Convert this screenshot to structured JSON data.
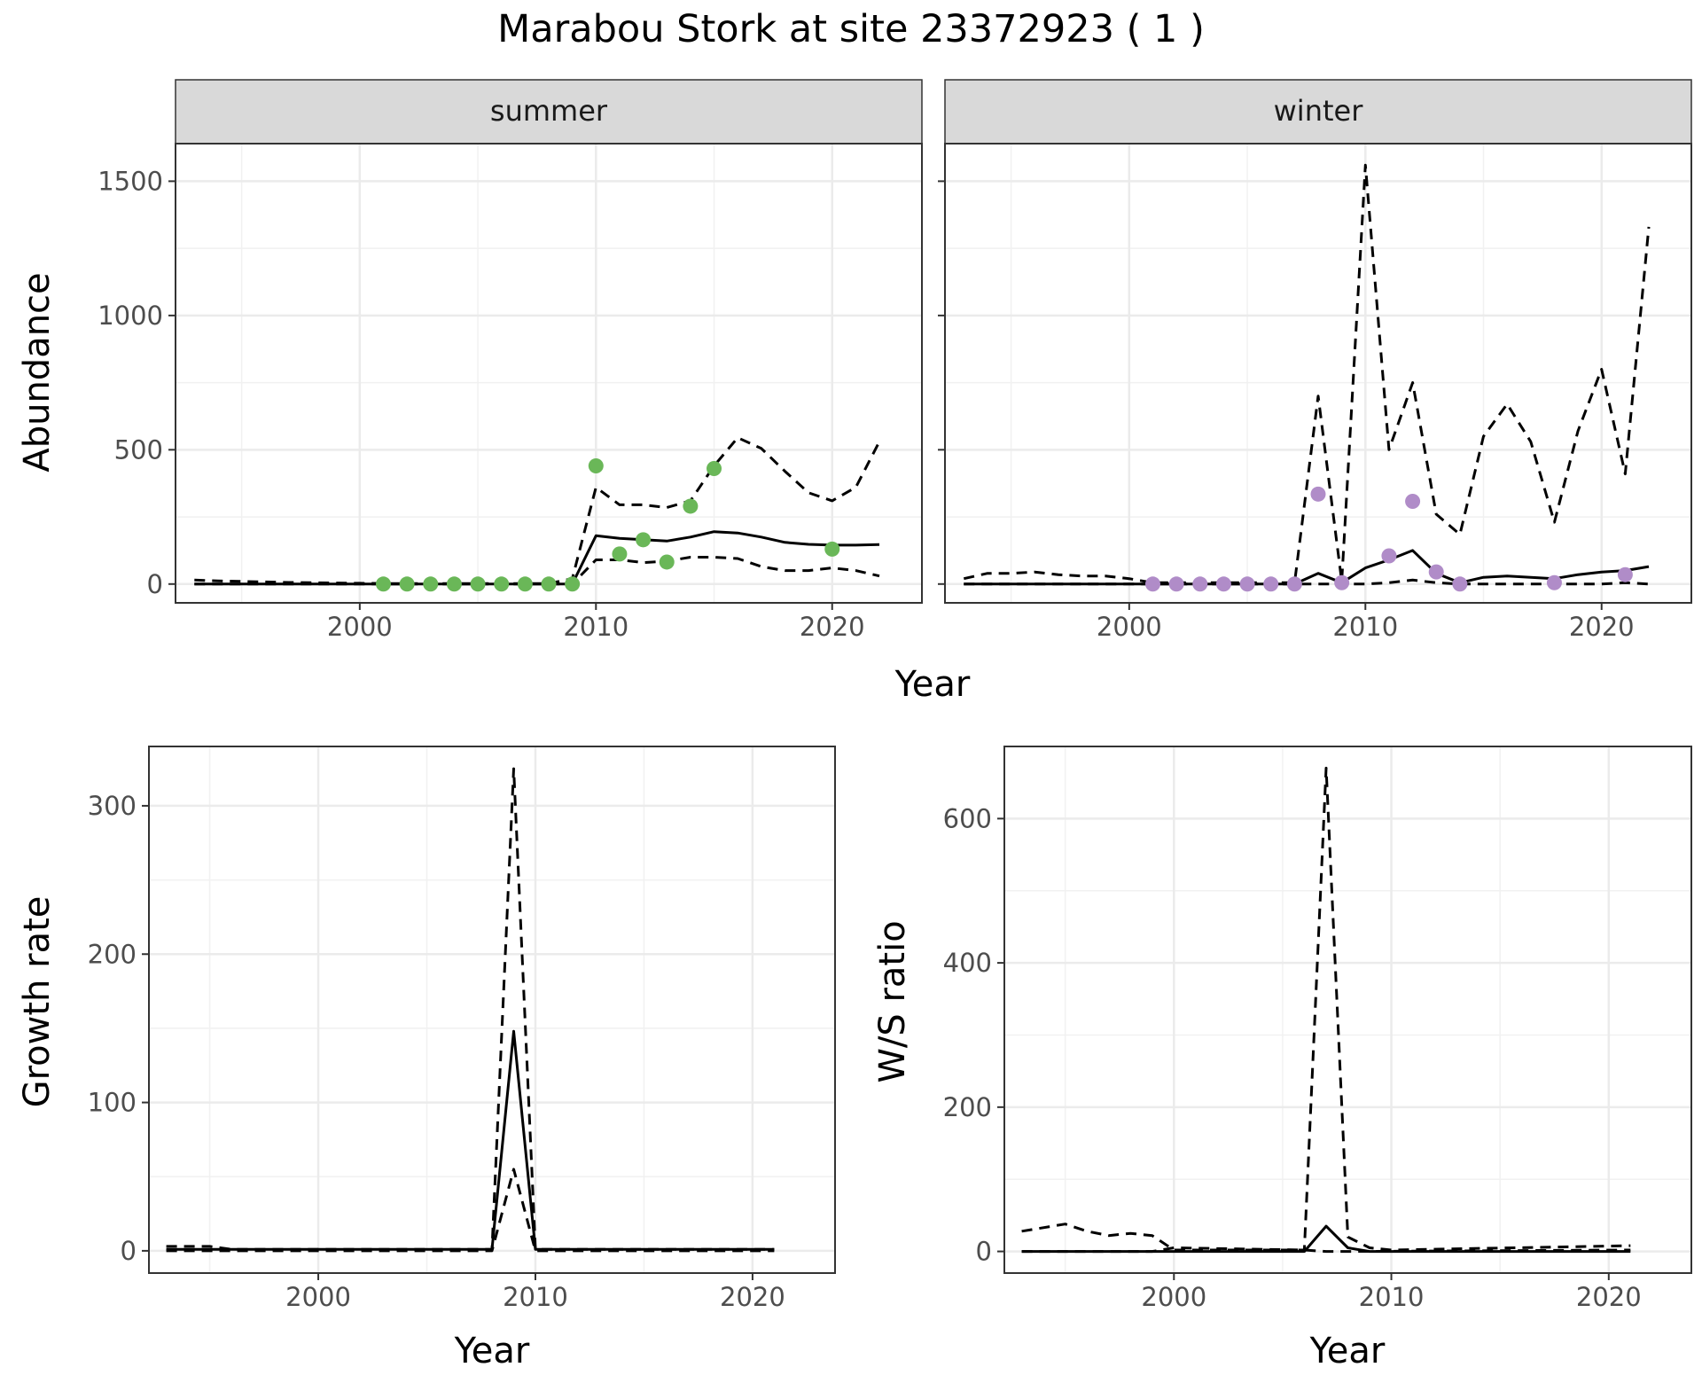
{
  "title": "Marabou Stork at site 23372923 ( 1 )",
  "chart_data": [
    {
      "panel": "summer",
      "type": "line",
      "xlabel": "",
      "ylabel": "Abundance",
      "xlim": [
        1992.2,
        2023.8
      ],
      "ylim": [
        -70,
        1640
      ],
      "xticks": [
        2000,
        2010,
        2020
      ],
      "yticks": [
        0,
        500,
        1000,
        1500
      ],
      "grid": true,
      "lines": [
        {
          "style": "solid",
          "x": [
            1993,
            2009,
            2010,
            2011,
            2012,
            2013,
            2014,
            2015,
            2016,
            2017,
            2018,
            2019,
            2020,
            2021,
            2022
          ],
          "y": [
            0,
            0,
            180,
            170,
            165,
            160,
            175,
            195,
            190,
            175,
            155,
            148,
            145,
            145,
            147
          ]
        },
        {
          "style": "dashed",
          "x": [
            1993,
            1994,
            1995,
            1996,
            1997,
            1998,
            1999,
            2000,
            2001,
            2002,
            2003,
            2004,
            2005,
            2006,
            2007,
            2008,
            2009,
            2010,
            2011,
            2012,
            2013,
            2014,
            2015,
            2016,
            2017,
            2018,
            2019,
            2020,
            2021,
            2022
          ],
          "y": [
            15,
            12,
            10,
            8,
            6,
            5,
            4,
            3,
            2,
            2,
            2,
            2,
            2,
            2,
            2,
            2,
            20,
            360,
            295,
            295,
            285,
            310,
            440,
            545,
            505,
            420,
            340,
            310,
            360,
            530
          ]
        },
        {
          "style": "dashed",
          "x": [
            1993,
            2009,
            2010,
            2011,
            2012,
            2013,
            2014,
            2015,
            2016,
            2017,
            2018,
            2019,
            2020,
            2021,
            2022
          ],
          "y": [
            0,
            0,
            90,
            90,
            80,
            85,
            100,
            100,
            95,
            65,
            50,
            50,
            60,
            50,
            30
          ]
        }
      ],
      "points": {
        "color": "#6ab758",
        "x": [
          2001,
          2002,
          2003,
          2004,
          2005,
          2006,
          2007,
          2008,
          2009,
          2010,
          2011,
          2012,
          2013,
          2014,
          2015,
          2020
        ],
        "y": [
          0,
          0,
          0,
          0,
          0,
          0,
          0,
          0,
          0,
          440,
          112,
          165,
          82,
          290,
          430,
          130
        ]
      }
    },
    {
      "panel": "winter",
      "type": "line",
      "xlabel": "",
      "ylabel": "",
      "xlim": [
        1992.2,
        2023.8
      ],
      "ylim": [
        -70,
        1640
      ],
      "xticks": [
        2000,
        2010,
        2020
      ],
      "yticks": [
        0,
        500,
        1000,
        1500
      ],
      "grid": true,
      "lines": [
        {
          "style": "solid",
          "x": [
            1993,
            2007,
            2008,
            2009,
            2010,
            2011,
            2012,
            2013,
            2014,
            2015,
            2016,
            2017,
            2018,
            2019,
            2020,
            2021,
            2022
          ],
          "y": [
            0,
            0,
            40,
            5,
            60,
            90,
            125,
            40,
            5,
            25,
            30,
            25,
            20,
            35,
            45,
            50,
            65
          ]
        },
        {
          "style": "dashed",
          "x": [
            1993,
            1994,
            1995,
            1996,
            1997,
            1998,
            1999,
            2000,
            2001,
            2002,
            2003,
            2004,
            2005,
            2006,
            2007,
            2008,
            2009,
            2010,
            2011,
            2012,
            2013,
            2014,
            2015,
            2016,
            2017,
            2018,
            2019,
            2020,
            2021,
            2022
          ],
          "y": [
            20,
            40,
            40,
            45,
            35,
            30,
            30,
            20,
            5,
            5,
            5,
            5,
            5,
            5,
            5,
            700,
            10,
            1560,
            500,
            750,
            260,
            185,
            550,
            670,
            530,
            230,
            570,
            800,
            410,
            1330
          ]
        },
        {
          "style": "dashed",
          "x": [
            1993,
            2010,
            2011,
            2012,
            2013,
            2014,
            2020,
            2021,
            2022
          ],
          "y": [
            0,
            0,
            5,
            15,
            5,
            0,
            0,
            5,
            0
          ]
        }
      ],
      "points": {
        "color": "#b08cc8",
        "x": [
          2001,
          2002,
          2003,
          2004,
          2005,
          2006,
          2007,
          2008,
          2009,
          2011,
          2012,
          2013,
          2014,
          2018,
          2021
        ],
        "y": [
          0,
          0,
          0,
          0,
          0,
          0,
          0,
          335,
          5,
          105,
          308,
          45,
          0,
          5,
          35
        ]
      }
    },
    {
      "panel": "growth",
      "type": "line",
      "xlabel": "Year",
      "ylabel": "Growth rate",
      "xlim": [
        1992.2,
        2023.8
      ],
      "ylim": [
        -15,
        340
      ],
      "xticks": [
        2000,
        2010,
        2020
      ],
      "yticks": [
        0,
        100,
        200,
        300
      ],
      "grid": true,
      "lines": [
        {
          "style": "solid",
          "x": [
            1993,
            2008,
            2009,
            2010,
            2021
          ],
          "y": [
            1,
            1,
            148,
            1,
            1
          ]
        },
        {
          "style": "dashed",
          "x": [
            1993,
            1995,
            1996,
            2008,
            2009,
            2010,
            2021
          ],
          "y": [
            3,
            3,
            1,
            1,
            325,
            1,
            1
          ]
        },
        {
          "style": "dashed",
          "x": [
            1993,
            2008,
            2009,
            2010,
            2021
          ],
          "y": [
            0,
            0,
            55,
            0,
            0
          ]
        }
      ]
    },
    {
      "panel": "ws-ratio",
      "type": "line",
      "xlabel": "Year",
      "ylabel": "W/S ratio",
      "xlim": [
        1992.2,
        2023.8
      ],
      "ylim": [
        -30,
        700
      ],
      "xticks": [
        2000,
        2010,
        2020
      ],
      "yticks": [
        0,
        200,
        400,
        600
      ],
      "grid": true,
      "lines": [
        {
          "style": "solid",
          "x": [
            1993,
            2006,
            2007,
            2008,
            2009,
            2021
          ],
          "y": [
            0,
            0,
            35,
            5,
            0,
            0
          ]
        },
        {
          "style": "dashed",
          "x": [
            1993,
            1995,
            1996,
            1997,
            1998,
            1999,
            2000,
            2006,
            2007,
            2008,
            2009,
            2010,
            2021
          ],
          "y": [
            28,
            38,
            28,
            22,
            25,
            22,
            2,
            2,
            670,
            20,
            5,
            2,
            8
          ]
        },
        {
          "style": "dashed",
          "x": [
            1993,
            1999,
            2000,
            2006,
            2007,
            2008,
            2021
          ],
          "y": [
            0,
            0,
            5,
            2,
            0,
            0,
            2
          ]
        }
      ]
    }
  ]
}
